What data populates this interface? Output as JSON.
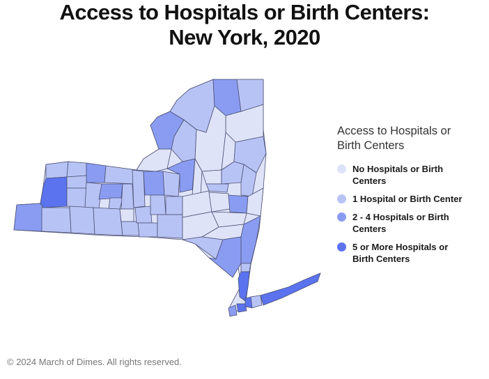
{
  "title": {
    "line1": "Access to Hospitals or Birth Centers:",
    "line2": "New York, 2020"
  },
  "legend": {
    "title_line1": "Access to Hospitals or",
    "title_line2": "Birth Centers",
    "items": [
      {
        "label_line1": "No Hospitals or Birth",
        "label_line2": "Centers",
        "color": "#dfe3f8"
      },
      {
        "label_line1": "1 Hospital or Birth Center",
        "label_line2": "",
        "color": "#b8c3f5"
      },
      {
        "label_line1": "2 - 4 Hospitals or Birth",
        "label_line2": "Centers",
        "color": "#8a9cf2"
      },
      {
        "label_line1": "5 or More Hospitals or",
        "label_line2": "Birth Centers",
        "color": "#5b73ef"
      }
    ]
  },
  "footer": "© 2024 March of Dimes. All rights reserved."
}
